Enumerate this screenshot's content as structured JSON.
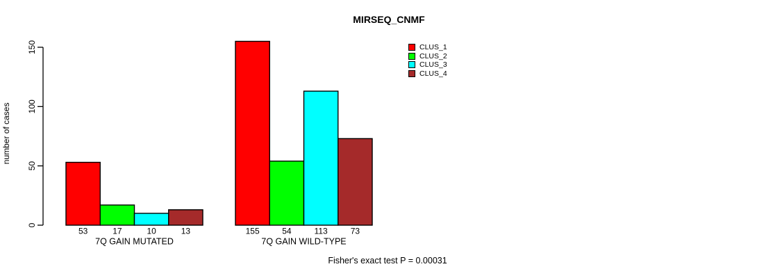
{
  "figure": {
    "background": "#ffffff",
    "axis_color": "#000000",
    "text_color": "#000000"
  },
  "chart_data": {
    "type": "bar",
    "title": "MIRSEQ_CNMF",
    "ylabel": "number of cases",
    "xlabel": "",
    "categories": [
      "7Q GAIN MUTATED",
      "7Q GAIN WILD-TYPE"
    ],
    "series": [
      {
        "name": "CLUS_1",
        "color": "#ff0000",
        "values": [
          53,
          155
        ]
      },
      {
        "name": "CLUS_2",
        "color": "#00ff00",
        "values": [
          17,
          54
        ]
      },
      {
        "name": "CLUS_3",
        "color": "#00ffff",
        "values": [
          10,
          113
        ]
      },
      {
        "name": "CLUS_4",
        "color": "#a52a2a",
        "values": [
          13,
          73
        ]
      }
    ],
    "yticks": [
      0,
      50,
      100,
      150
    ],
    "ylim": [
      0,
      155
    ],
    "grid": false,
    "legend_position": "top-right",
    "bar_borders": "#000000",
    "annotation": "Fisher's exact test P = 0.00031"
  }
}
